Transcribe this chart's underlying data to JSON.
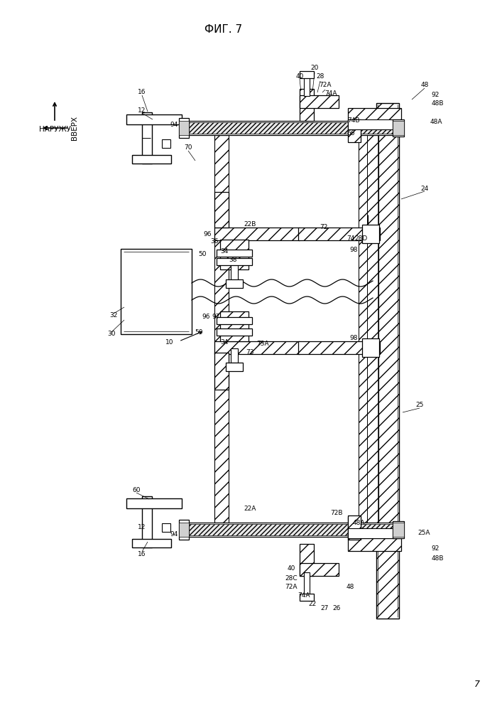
{
  "title": "ФИГ. 7",
  "page_number": "7",
  "bg": "#ffffff",
  "dir_up": "ВВЕРХ",
  "dir_out": "НАРУЖУ",
  "figsize": [
    7.07,
    10.0
  ],
  "dpi": 100
}
